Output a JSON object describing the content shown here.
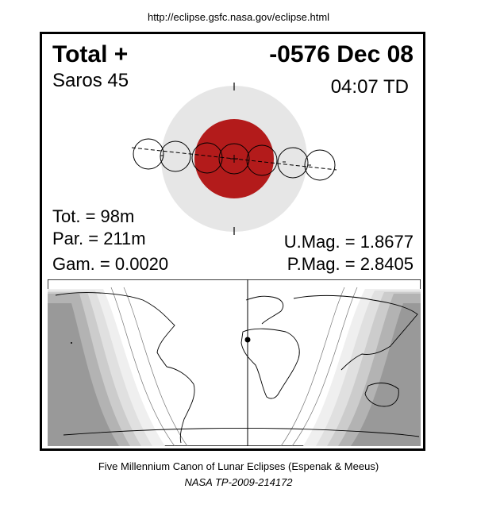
{
  "header": {
    "url": "http://eclipse.gsfc.nasa.gov/eclipse.html"
  },
  "eclipse": {
    "type": "Total  +",
    "date": "-0576 Dec 08",
    "saros": "Saros  45",
    "time": "04:07 TD",
    "tot": "Tot. =  98m",
    "par": "Par. = 211m",
    "gam": "Gam. = 0.0020",
    "umag": "U.Mag. = 1.8677",
    "pmag": "P.Mag. = 2.8405"
  },
  "footer": {
    "canon": "Five Millennium Canon of Lunar Eclipses (Espenak & Meeus)",
    "nasa": "NASA TP-2009-214172"
  },
  "colors": {
    "penumbra": "#e6e6e6",
    "umbra": "#b31b1b",
    "map_dark": "#999999",
    "map_band1": "#b3b3b3",
    "map_band2": "#cccccc",
    "map_band3": "#e0e0e0",
    "map_band4": "#efefef"
  }
}
